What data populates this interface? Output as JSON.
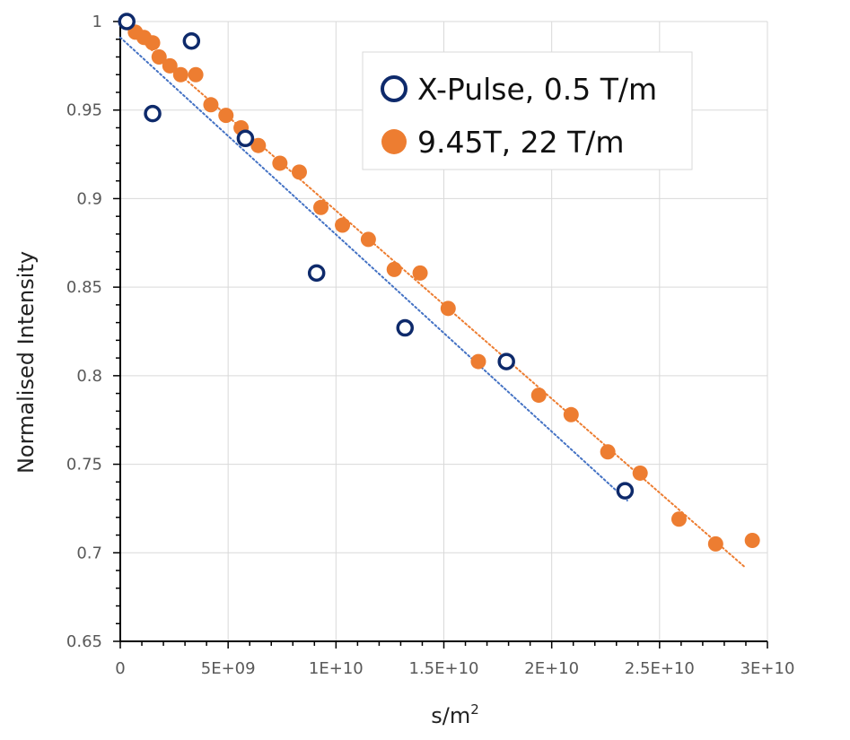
{
  "chart_data": {
    "type": "scatter",
    "title": "",
    "xlabel_base": "s/m",
    "xlabel_sup": "2",
    "ylabel": "Normalised Intensity",
    "xlim": [
      0,
      30000000000
    ],
    "ylim": [
      0.65,
      1.0
    ],
    "x_major_step": 5000000000,
    "y_major_step": 0.05,
    "x_minor_step": 1000000000,
    "y_minor_step": 0.01,
    "x_ticks": [
      {
        "value": 0,
        "label": "0"
      },
      {
        "value": 5000000000,
        "label": "5E+09"
      },
      {
        "value": 10000000000,
        "label": "1E+10"
      },
      {
        "value": 15000000000,
        "label": "1.5E+10"
      },
      {
        "value": 20000000000,
        "label": "2E+10"
      },
      {
        "value": 25000000000,
        "label": "2.5E+10"
      },
      {
        "value": 30000000000,
        "label": "3E+10"
      }
    ],
    "y_ticks": [
      {
        "value": 0.65,
        "label": "0.65"
      },
      {
        "value": 0.7,
        "label": "0.7"
      },
      {
        "value": 0.75,
        "label": "0.75"
      },
      {
        "value": 0.8,
        "label": "0.8"
      },
      {
        "value": 0.85,
        "label": "0.85"
      },
      {
        "value": 0.9,
        "label": "0.9"
      },
      {
        "value": 0.95,
        "label": "0.95"
      },
      {
        "value": 1.0,
        "label": "1"
      }
    ],
    "grid": true,
    "legend_position": "top-right",
    "series": [
      {
        "name": "X-Pulse, 0.5 T/m",
        "marker": "open-circle",
        "color": "#0e2a6b",
        "points": [
          [
            300000000,
            1.0
          ],
          [
            1500000000,
            0.948
          ],
          [
            3300000000,
            0.989
          ],
          [
            5800000000,
            0.934
          ],
          [
            9100000000,
            0.858
          ],
          [
            13200000000,
            0.827
          ],
          [
            17900000000,
            0.808
          ],
          [
            23400000000,
            0.735
          ]
        ],
        "trendline": {
          "type": "linear",
          "color": "#4472c4",
          "x_range": [
            0,
            23500000000
          ]
        }
      },
      {
        "name": "9.45T, 22 T/m",
        "marker": "filled-circle",
        "color": "#ed7d31",
        "points": [
          [
            700000000,
            0.994
          ],
          [
            1100000000,
            0.991
          ],
          [
            1500000000,
            0.988
          ],
          [
            1800000000,
            0.98
          ],
          [
            2300000000,
            0.975
          ],
          [
            2800000000,
            0.97
          ],
          [
            3500000000,
            0.97
          ],
          [
            4200000000,
            0.953
          ],
          [
            4900000000,
            0.947
          ],
          [
            5600000000,
            0.94
          ],
          [
            6400000000,
            0.93
          ],
          [
            7400000000,
            0.92
          ],
          [
            8300000000,
            0.915
          ],
          [
            9300000000,
            0.895
          ],
          [
            10300000000,
            0.885
          ],
          [
            11500000000,
            0.877
          ],
          [
            12700000000,
            0.86
          ],
          [
            13900000000,
            0.858
          ],
          [
            15200000000,
            0.838
          ],
          [
            16600000000,
            0.808
          ],
          [
            19400000000,
            0.789
          ],
          [
            20900000000,
            0.778
          ],
          [
            22600000000,
            0.757
          ],
          [
            24100000000,
            0.745
          ],
          [
            25900000000,
            0.719
          ],
          [
            27600000000,
            0.705
          ],
          [
            29300000000,
            0.707
          ]
        ],
        "trendline": {
          "type": "linear",
          "color": "#ed7d31",
          "x_range": [
            0,
            29000000000
          ]
        }
      }
    ]
  }
}
